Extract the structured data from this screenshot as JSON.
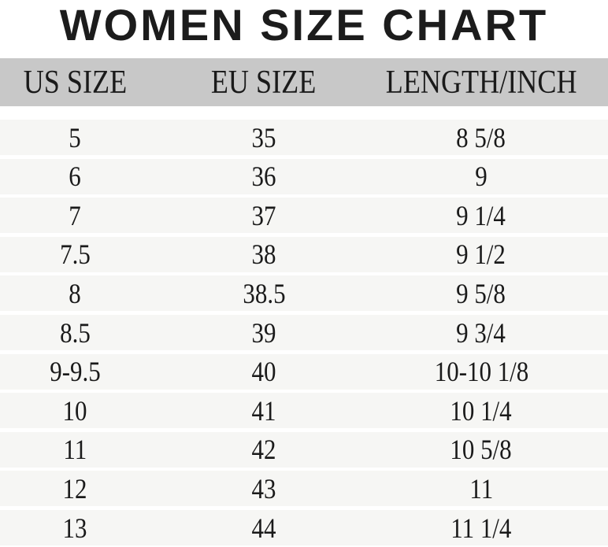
{
  "title": "WOMEN SIZE CHART",
  "columns": [
    "US SIZE",
    "EU SIZE",
    "LENGTH/INCH"
  ],
  "rows": [
    [
      "5",
      "35",
      "8 5/8"
    ],
    [
      "6",
      "36",
      "9"
    ],
    [
      "7",
      "37",
      "9 1/4"
    ],
    [
      "7.5",
      "38",
      "9 1/2"
    ],
    [
      "8",
      "38.5",
      "9 5/8"
    ],
    [
      "8.5",
      "39",
      "9 3/4"
    ],
    [
      "9-9.5",
      "40",
      "10-10 1/8"
    ],
    [
      "10",
      "41",
      "10 1/4"
    ],
    [
      "11",
      "42",
      "10 5/8"
    ],
    [
      "12",
      "43",
      "11"
    ],
    [
      "13",
      "44",
      "11 1/4"
    ]
  ],
  "colors": {
    "header_bg": "#c8c8c8",
    "row_bg": "#f6f6f4",
    "text": "#1a1a1a"
  }
}
